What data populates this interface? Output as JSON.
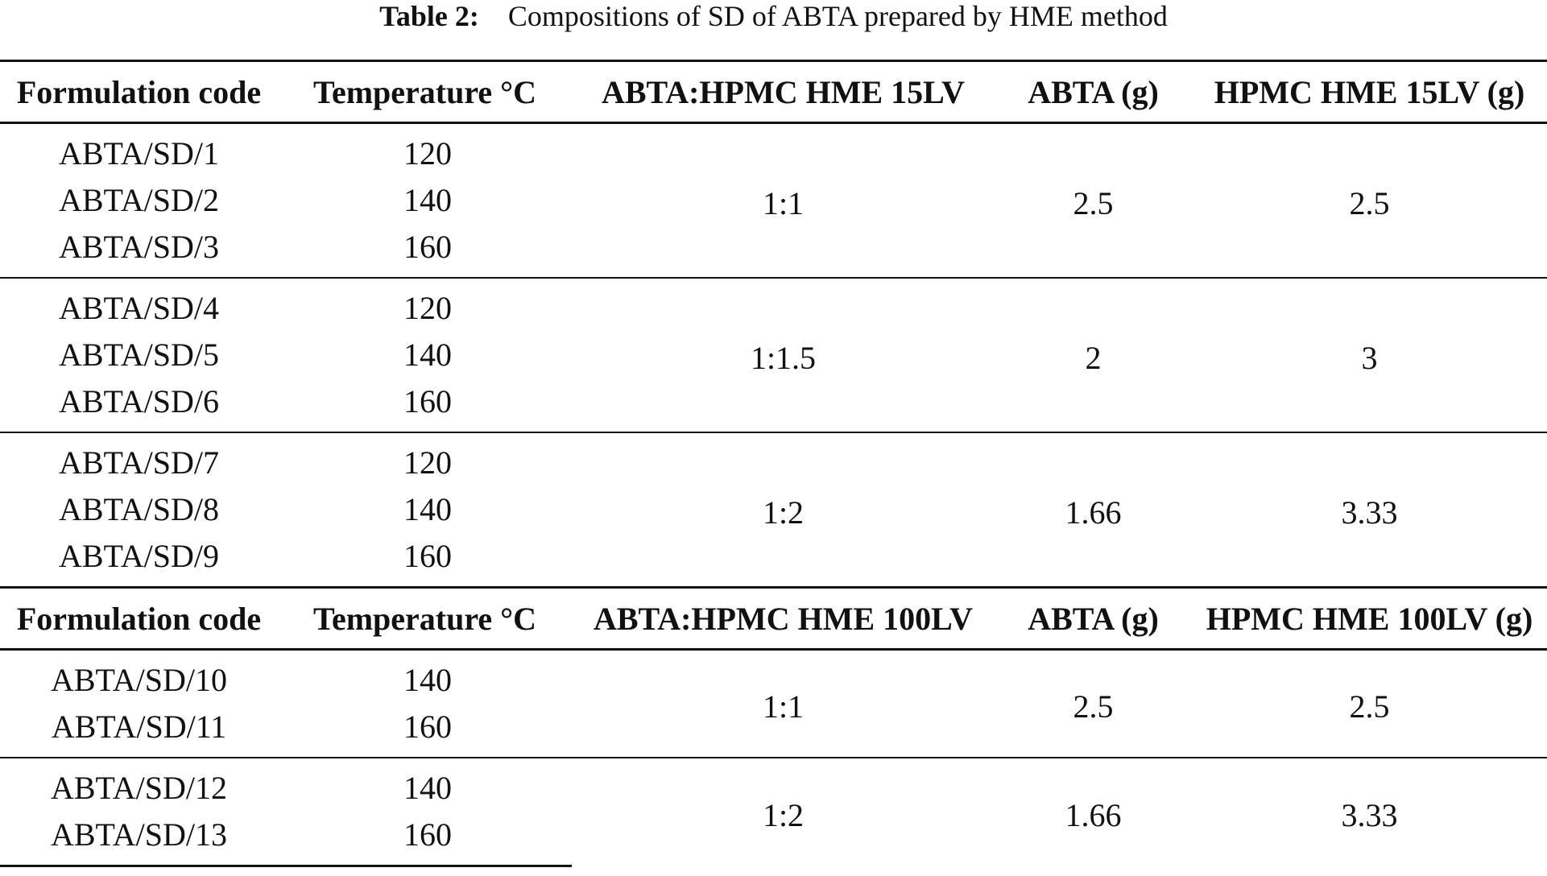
{
  "caption": {
    "label": "Table 2:",
    "text": "Compositions of SD of ABTA prepared by HME method"
  },
  "table1": {
    "headers": [
      "Formulation code",
      "Temperature °C",
      "ABTA:HPMC HME 15LV",
      "ABTA (g)",
      "HPMC HME 15LV (g)"
    ],
    "groups": [
      {
        "rows": [
          {
            "code": "ABTA/SD/1",
            "temp": "120"
          },
          {
            "code": "ABTA/SD/2",
            "temp": "140"
          },
          {
            "code": "ABTA/SD/3",
            "temp": "160"
          }
        ],
        "ratio": "1:1",
        "abta": "2.5",
        "hpmc": "2.5"
      },
      {
        "rows": [
          {
            "code": "ABTA/SD/4",
            "temp": "120"
          },
          {
            "code": "ABTA/SD/5",
            "temp": "140"
          },
          {
            "code": "ABTA/SD/6",
            "temp": "160"
          }
        ],
        "ratio": "1:1.5",
        "abta": "2",
        "hpmc": "3"
      },
      {
        "rows": [
          {
            "code": "ABTA/SD/7",
            "temp": "120"
          },
          {
            "code": "ABTA/SD/8",
            "temp": "140"
          },
          {
            "code": "ABTA/SD/9",
            "temp": "160"
          }
        ],
        "ratio": "1:2",
        "abta": "1.66",
        "hpmc": "3.33"
      }
    ]
  },
  "table2": {
    "headers": [
      "Formulation code",
      "Temperature °C",
      "ABTA:HPMC HME 100LV",
      "ABTA (g)",
      "HPMC HME 100LV (g)"
    ],
    "groups": [
      {
        "rows": [
          {
            "code": "ABTA/SD/10",
            "temp": "140"
          },
          {
            "code": "ABTA/SD/11",
            "temp": "160"
          }
        ],
        "ratio": "1:1",
        "abta": "2.5",
        "hpmc": "2.5"
      },
      {
        "rows": [
          {
            "code": "ABTA/SD/12",
            "temp": "140"
          },
          {
            "code": "ABTA/SD/13",
            "temp": "160"
          }
        ],
        "ratio": "1:2",
        "abta": "1.66",
        "hpmc": "3.33"
      }
    ]
  }
}
